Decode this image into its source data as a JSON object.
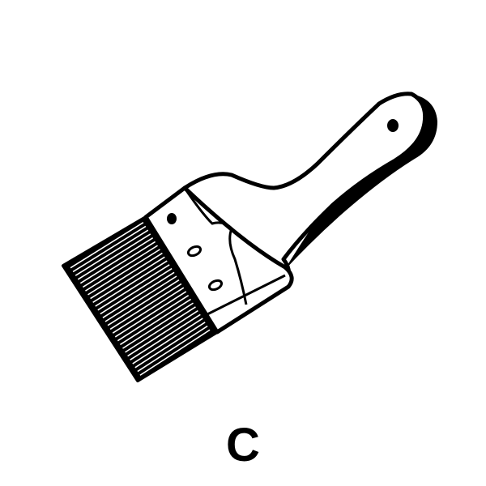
{
  "figure": {
    "caption": "C",
    "subject_icon": "paintbrush-icon",
    "ink_color": "#000000",
    "paper_color": "#ffffff"
  }
}
